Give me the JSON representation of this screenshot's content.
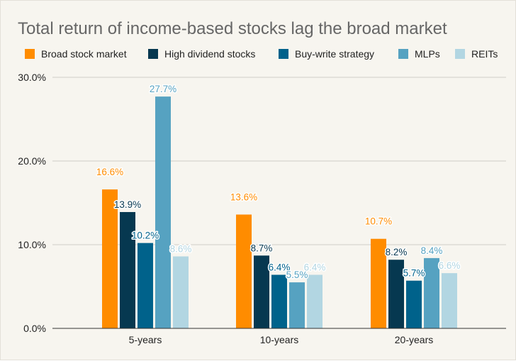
{
  "chart_data": {
    "type": "bar",
    "title": "Total return of income-based stocks lag the broad market",
    "categories": [
      "5-years",
      "10-years",
      "20-years"
    ],
    "series": [
      {
        "name": "Broad stock market",
        "color": "#ff8c00",
        "values": [
          16.6,
          13.6,
          10.7
        ],
        "labels": [
          "16.6%",
          "13.6%",
          "10.7%"
        ]
      },
      {
        "name": "High dividend stocks",
        "color": "#063850",
        "values": [
          13.9,
          8.7,
          8.2
        ],
        "labels": [
          "13.9%",
          "8.7%",
          "8.2%"
        ]
      },
      {
        "name": "Buy-write strategy",
        "color": "#00628b",
        "values": [
          10.2,
          6.4,
          5.7
        ],
        "labels": [
          "10.2%",
          "6.4%",
          "5.7%"
        ]
      },
      {
        "name": "MLPs",
        "color": "#56a2c1",
        "values": [
          27.7,
          5.5,
          8.4
        ],
        "labels": [
          "27.7%",
          "5.5%",
          "8.4%"
        ]
      },
      {
        "name": "REITs",
        "color": "#b2d6e2",
        "values": [
          8.6,
          6.4,
          6.6
        ],
        "labels": [
          "8.6%",
          "6.4%",
          "6.6%"
        ]
      }
    ],
    "ylim": [
      0,
      30
    ],
    "y_ticks": [
      0,
      10,
      20,
      30
    ],
    "y_tick_labels": [
      "0.0%",
      "10.0%",
      "20.0%",
      "30.0%"
    ],
    "xlabel": "",
    "ylabel": "",
    "legend_position": "top",
    "grid": true
  }
}
